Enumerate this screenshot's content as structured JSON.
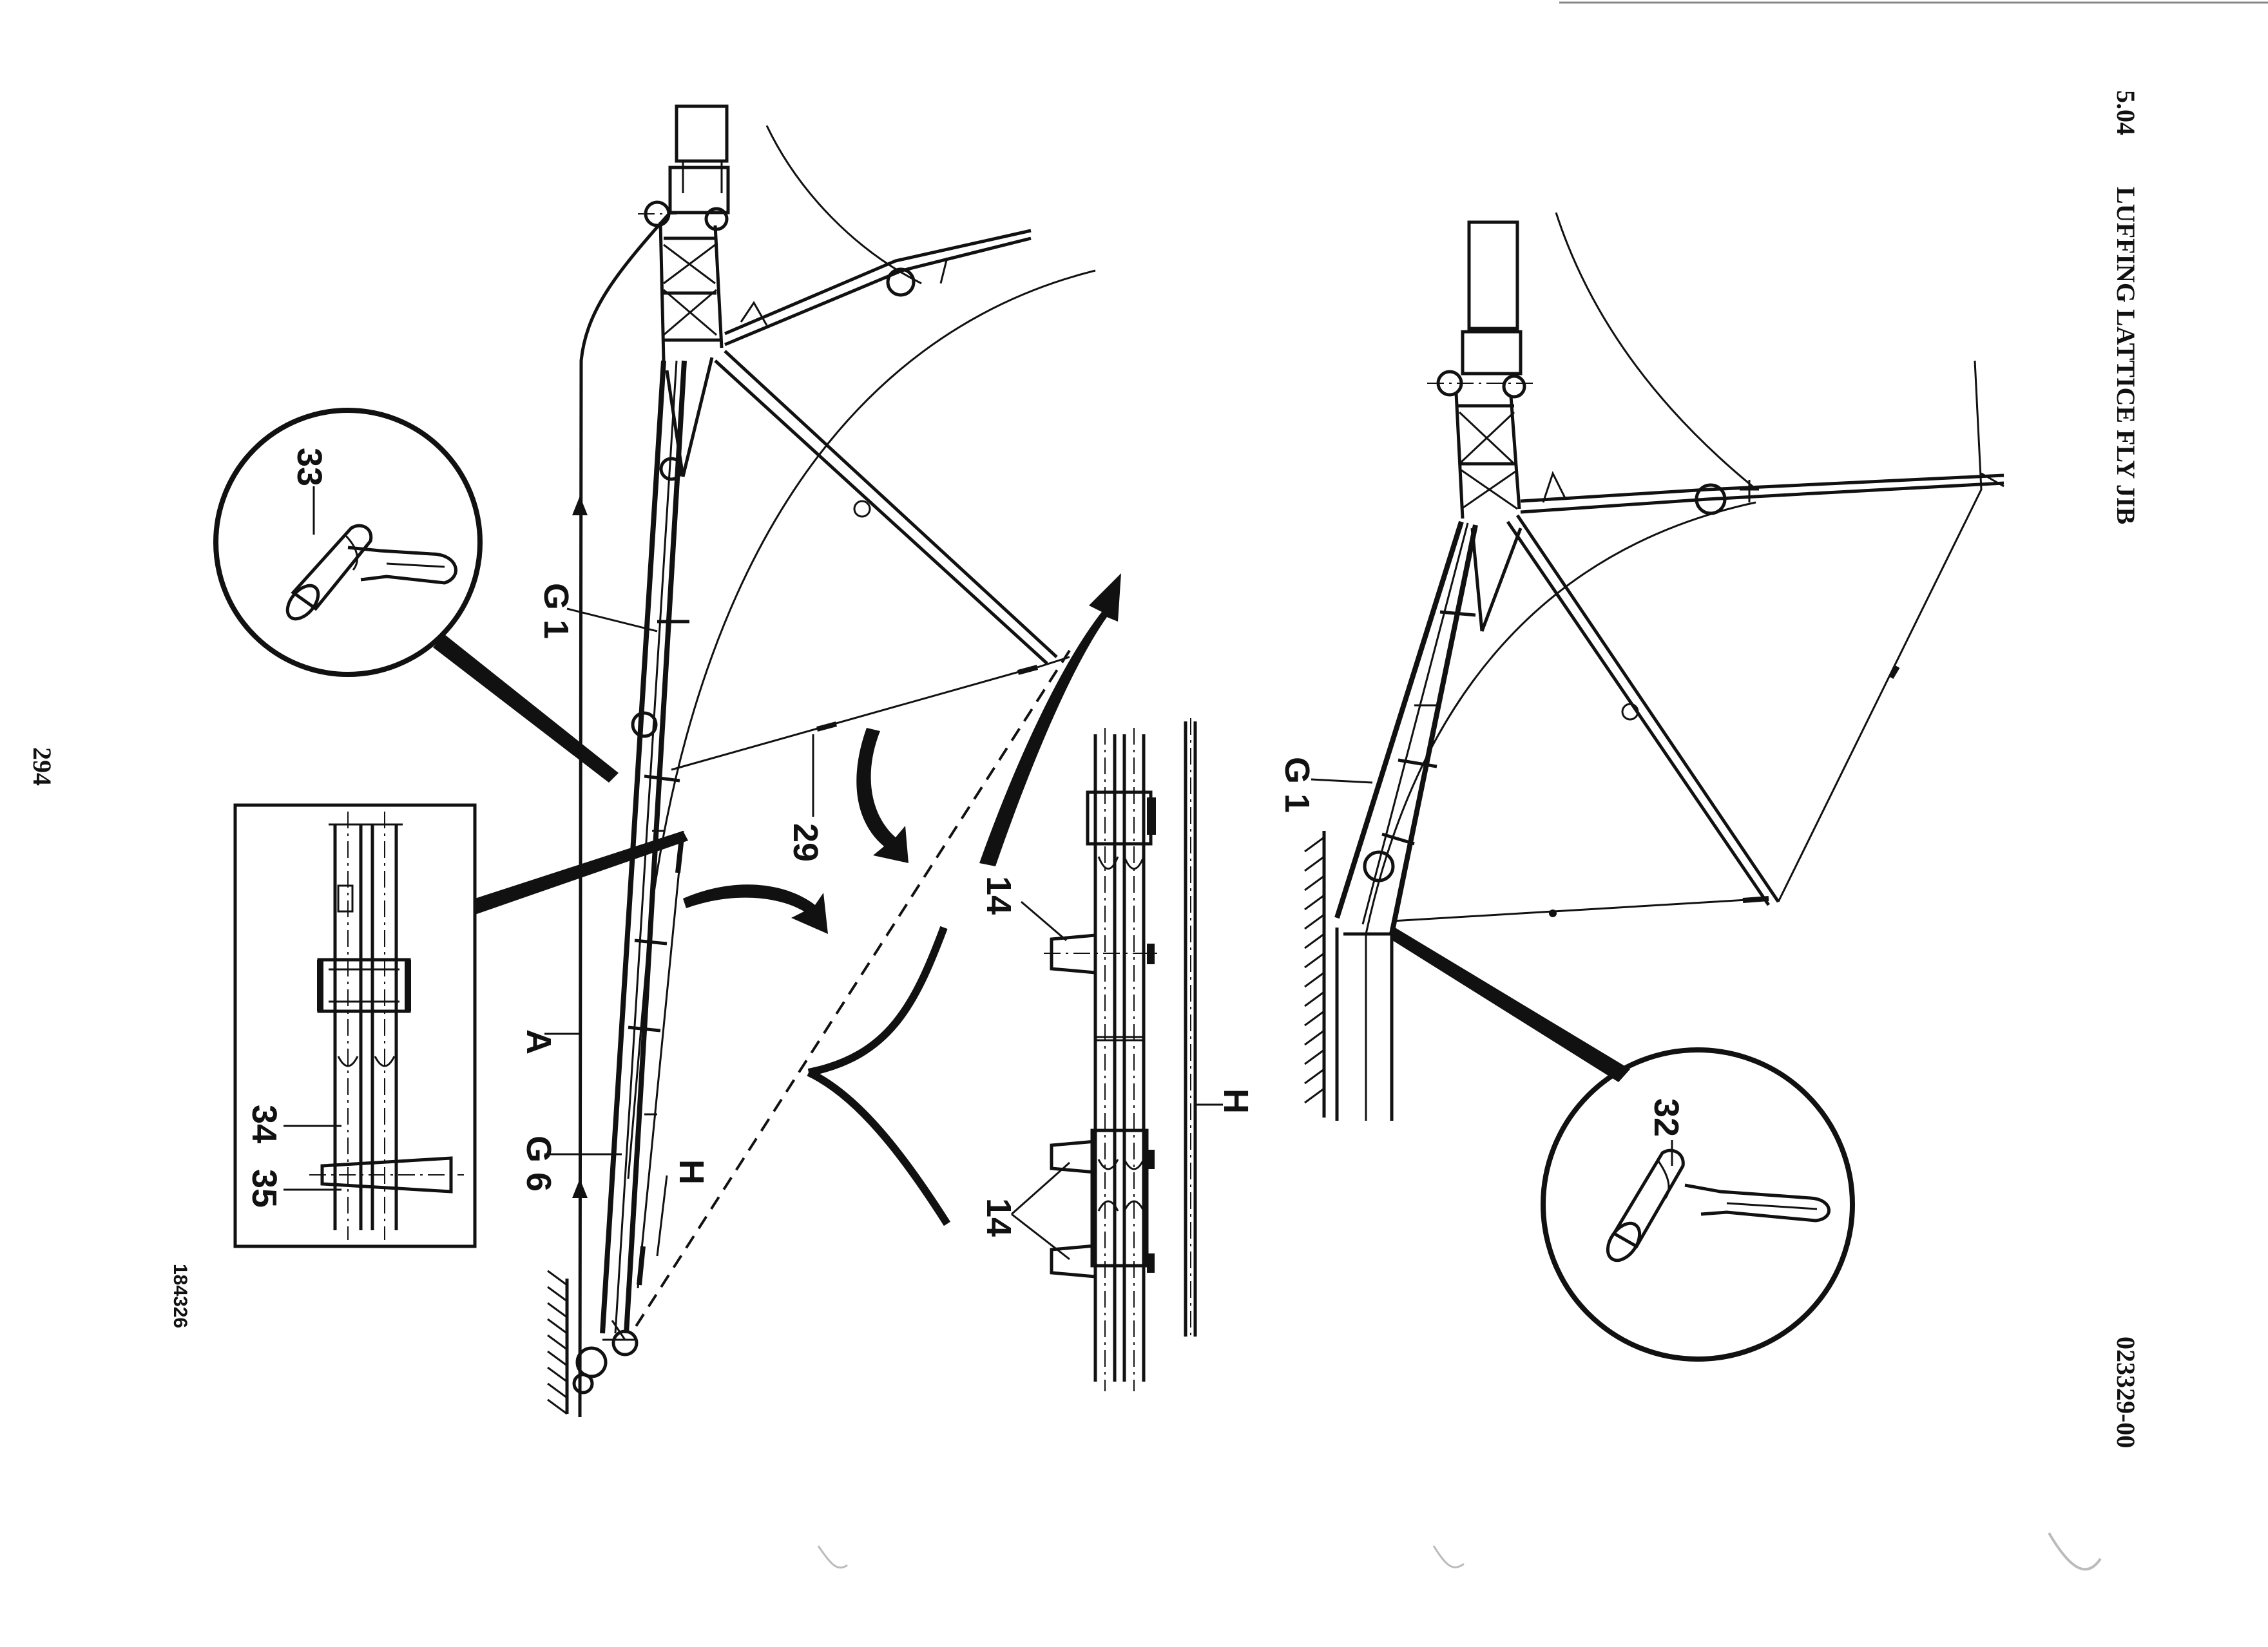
{
  "header": {
    "section_number": "5.04",
    "title": "LUFFING LATTICE FLY JIB",
    "drawing_code": "023329-00"
  },
  "footer": {
    "page_number": "294",
    "figure_number": "184326"
  },
  "left_figure": {
    "labels": {
      "g1": "G 1",
      "a": "A",
      "g6": "G 6",
      "h_top": "H",
      "rope": "29",
      "pin_33": "33",
      "pin_34": "34",
      "pin_35": "35"
    }
  },
  "detail_strip": {
    "labels": {
      "pin_14_top": "14",
      "pin_14_bottom": "14",
      "h": "H"
    }
  },
  "right_figure": {
    "labels": {
      "g1": "G 1",
      "pin_32": "32"
    }
  }
}
